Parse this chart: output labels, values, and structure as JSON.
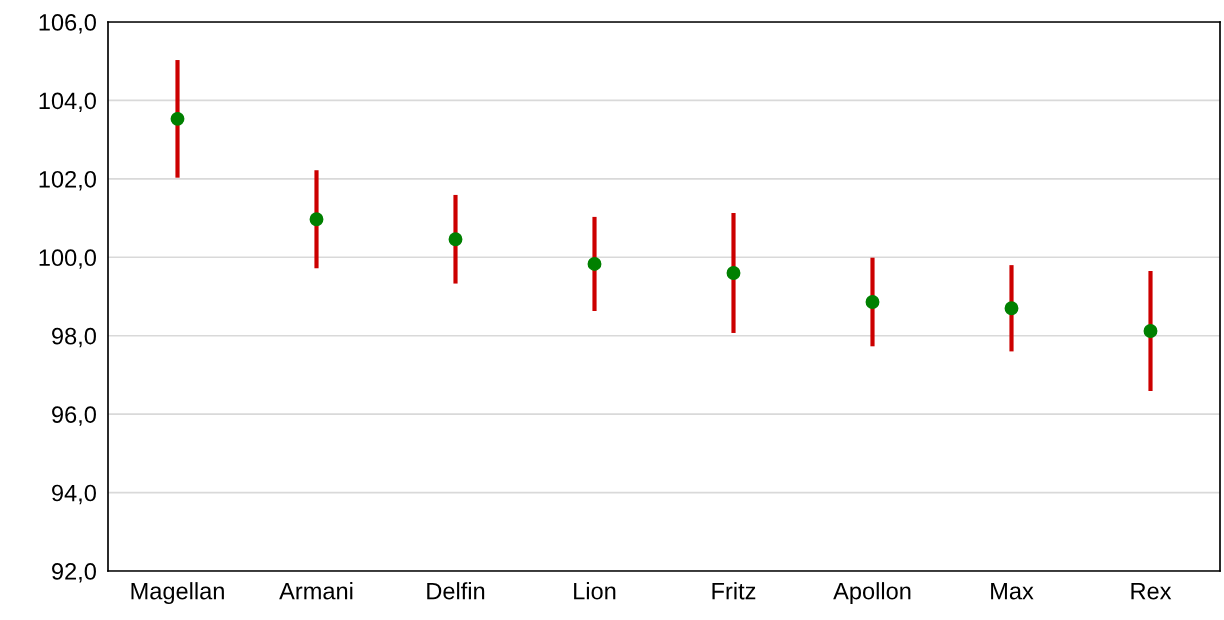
{
  "chart_data": {
    "type": "scatter",
    "categories": [
      "Magellan",
      "Armani",
      "Delfin",
      "Lion",
      "Fritz",
      "Apollon",
      "Max",
      "Rex"
    ],
    "series": [
      {
        "color": "#008000",
        "values": [
          103.53,
          100.97,
          100.46,
          99.83,
          99.6,
          98.86,
          98.7,
          98.12
        ],
        "errors": [
          1.5,
          1.25,
          1.13,
          1.2,
          1.53,
          1.13,
          1.1,
          1.53
        ]
      }
    ],
    "ylim": [
      92,
      106
    ],
    "yticks": [
      {
        "value": 92,
        "label": "92,0"
      },
      {
        "value": 94,
        "label": "94,0"
      },
      {
        "value": 96,
        "label": "96,0"
      },
      {
        "value": 98,
        "label": "98,0"
      },
      {
        "value": 100,
        "label": "100,0"
      },
      {
        "value": 102,
        "label": "102,0"
      },
      {
        "value": 104,
        "label": "104,0"
      },
      {
        "value": 106,
        "label": "106,0"
      }
    ],
    "grid": "y",
    "marker": "circle",
    "legend": false
  }
}
